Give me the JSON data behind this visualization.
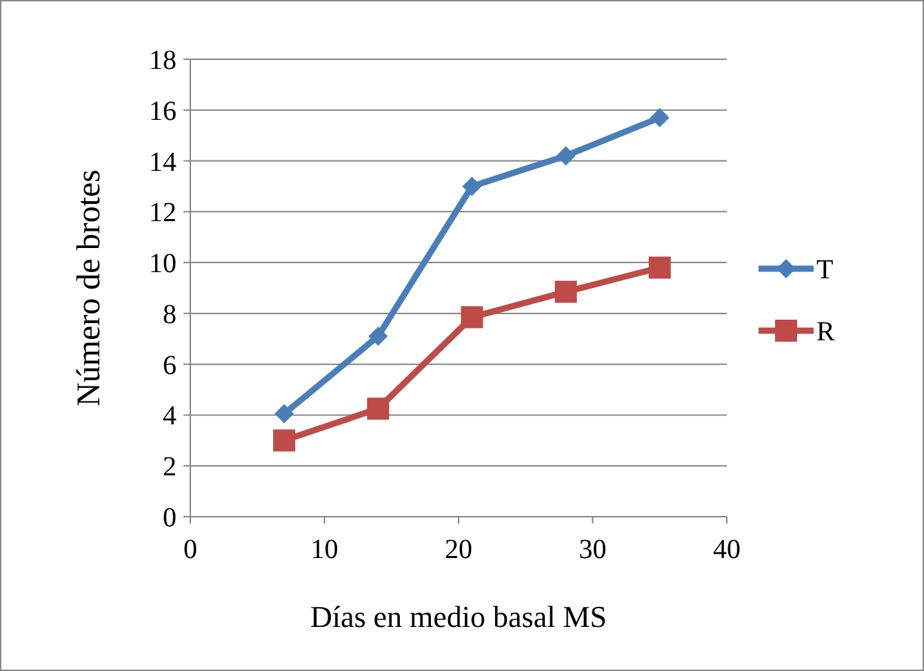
{
  "chart_data": {
    "type": "line",
    "xlabel": "Días en medio basal MS",
    "ylabel": "Número de brotes",
    "x": [
      7,
      14,
      21,
      28,
      35
    ],
    "series": [
      {
        "name": "T",
        "color": "#4a7ebb",
        "marker": "diamond",
        "values": [
          4.05,
          7.1,
          13.0,
          14.2,
          15.7
        ]
      },
      {
        "name": "R",
        "color": "#be4b48",
        "marker": "square",
        "values": [
          3.0,
          4.25,
          7.85,
          8.85,
          9.8
        ]
      }
    ],
    "xlim": [
      0,
      40
    ],
    "xticks": [
      0,
      10,
      20,
      30,
      40
    ],
    "ylim": [
      0,
      18
    ],
    "yticks": [
      0,
      2,
      4,
      6,
      8,
      10,
      12,
      14,
      16,
      18
    ],
    "grid": "y",
    "legend": "right",
    "line_style": "solid"
  }
}
